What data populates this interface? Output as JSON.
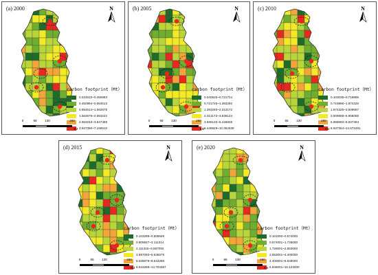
{
  "legend_title": "carbon footprint（Mt）",
  "north_label": "N",
  "scale": {
    "ticks": [
      "0",
      "65",
      "130",
      "260"
    ],
    "unit": "KM"
  },
  "colors": [
    "#1e6b2a",
    "#6fae2f",
    "#b8d63a",
    "#f3ea27",
    "#f3a53a",
    "#e8281e"
  ],
  "panels": [
    {
      "label": "(a) 2000",
      "classes": [
        "0.024610~0.450993",
        "0.450994~0.854513",
        "0.854514~1.562675",
        "1.562676~2.653242",
        "2.653243~3.947389",
        "3.947390~7.158510"
      ]
    },
    {
      "label": "(b) 2005",
      "classes": [
        "0.040626~0.721724",
        "0.721725~1.393292",
        "1.393293~2.313172",
        "2.313173~3.936124",
        "3.936125~6.446828",
        "6.446829~10.362639"
      ]
    },
    {
      "label": "(c) 2010",
      "classes": [
        "0.103039~0.719895",
        "0.719896~1.974325",
        "1.974326~3.509697",
        "3.509698~5.958059",
        "5.958060~8.837363",
        "8.837364~14.672491"
      ]
    },
    {
      "label": "(d) 2015",
      "classes": [
        "0.103269~0.805826",
        "0.805827~2.111314",
        "2.111315~3.597092",
        "3.597093~5.535678",
        "5.535679~8.543288",
        "8.543289~14.703367"
      ]
    },
    {
      "label": "(e) 2020",
      "classes": [
        "0.101000~0.574000",
        "0.574001~1.726000",
        "1.726001~2.853000",
        "2.853001~4.400000",
        "4.400001~6.848000",
        "6.848001~16.123000"
      ]
    }
  ]
}
